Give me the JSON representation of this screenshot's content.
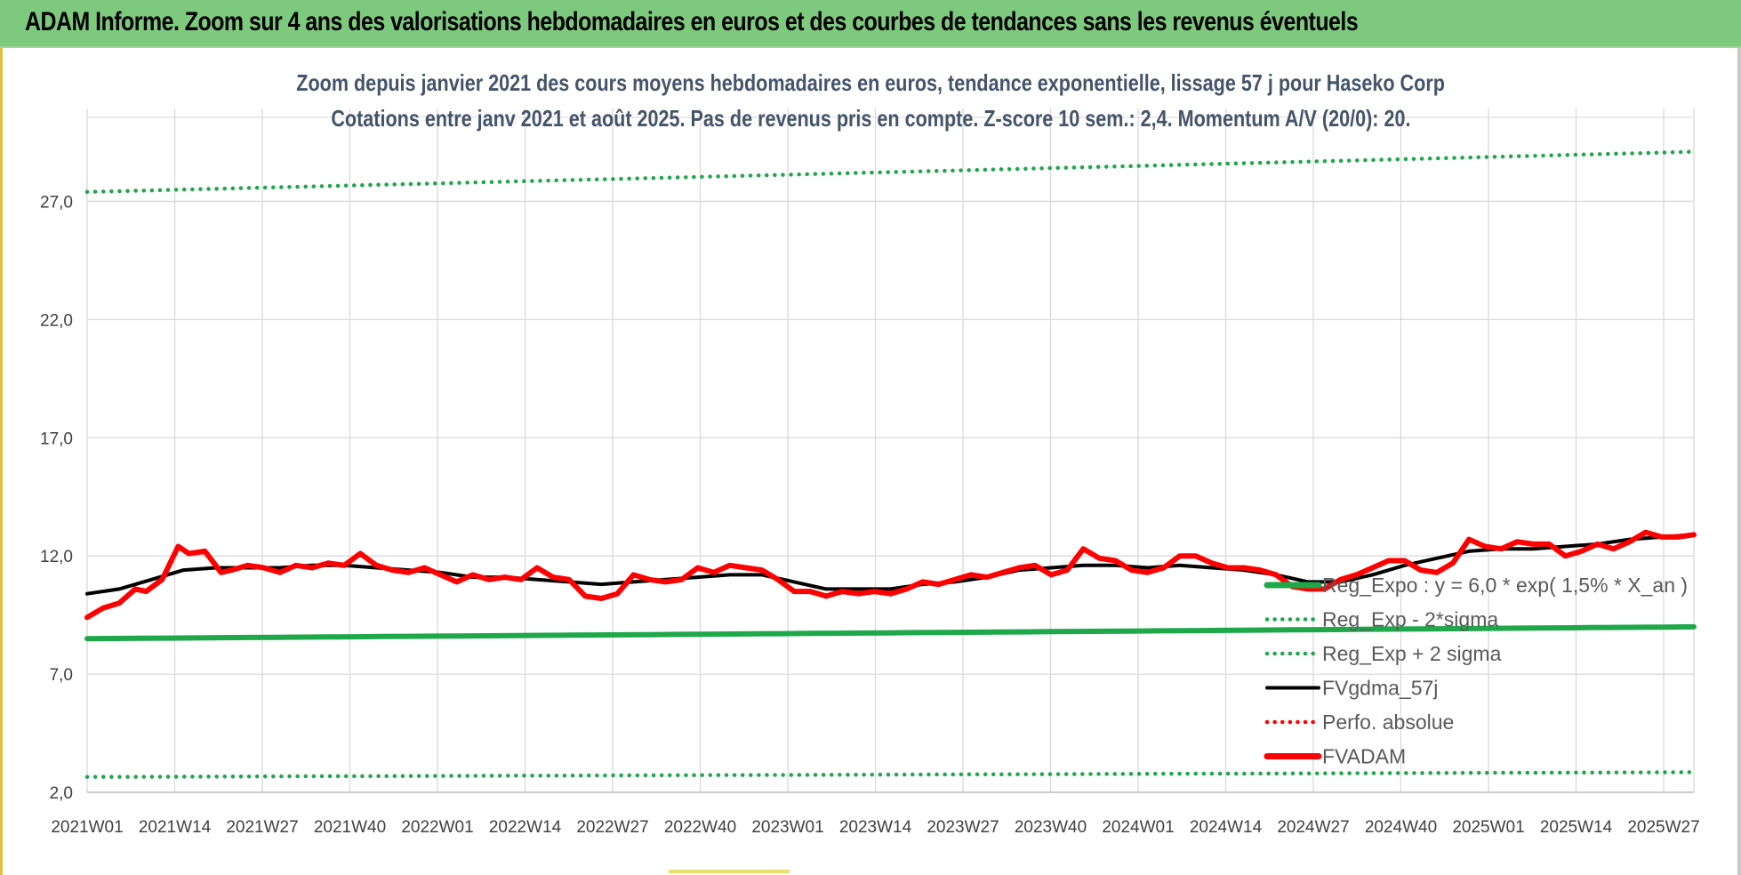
{
  "banner": {
    "title": "ADAM Informe. Zoom sur 4 ans des valorisations hebdomadaires en euros et des courbes de tendances sans les revenus éventuels"
  },
  "chart": {
    "title_line1": "Zoom depuis janvier 2021 des cours moyens hebdomadaires en euros, tendance exponentielle, lissage 57 j pour Haseko Corp",
    "title_line2": "Cotations entre janv 2021 et août 2025.  Pas de revenus pris en compte. Z-score 10 sem.: 2,4. Momentum A/V (20/0): 20."
  },
  "colors": {
    "green": "#1ea84a",
    "black": "#000000",
    "red": "#ff0000",
    "grid": "#d9d9d9",
    "banner": "#7dc97d"
  },
  "chart_data": {
    "type": "line",
    "ylim": [
      2,
      29.5
    ],
    "y_ticks": [
      "2,0",
      "7,0",
      "12,0",
      "17,0",
      "22,0",
      "27,0"
    ],
    "y_tick_values": [
      2,
      7,
      12,
      17,
      22,
      27
    ],
    "x_tick_labels": [
      "2021W01",
      "2021W14",
      "2021W27",
      "2021W40",
      "2022W01",
      "2022W14",
      "2022W27",
      "2022W40",
      "2023W01",
      "2023W14",
      "2023W27",
      "2023W40",
      "2024W01",
      "2024W14",
      "2024W27",
      "2024W40",
      "2025W01",
      "2025W14",
      "2025W27"
    ],
    "weeks_between_ticks": 13,
    "total_weeks": 239,
    "legend": [
      {
        "label": "Reg_Expo : y = 6,0 * exp( 1,5% *  X_an )",
        "style": "solid-thick",
        "color": "#1ea84a"
      },
      {
        "label": "Reg_Exp - 2*sigma",
        "style": "dotted",
        "color": "#1ea84a"
      },
      {
        "label": "Reg_Exp + 2 sigma",
        "style": "dotted",
        "color": "#1ea84a"
      },
      {
        "label": "FVgdma_57j",
        "style": "solid",
        "color": "#000000"
      },
      {
        "label": "Perfo. absolue",
        "style": "dotted",
        "color": "#ff0000"
      },
      {
        "label": "FVADAM",
        "style": "solid-thick",
        "color": "#ff0000"
      }
    ],
    "series": [
      {
        "name": "FVADAM",
        "points": [
          [
            0,
            9.4
          ],
          [
            3,
            9.8
          ],
          [
            6,
            10.0
          ],
          [
            9,
            10.6
          ],
          [
            11,
            10.5
          ],
          [
            14,
            11.0
          ],
          [
            17,
            12.4
          ],
          [
            19,
            12.1
          ],
          [
            22,
            12.2
          ],
          [
            25,
            11.3
          ],
          [
            27,
            11.4
          ],
          [
            30,
            11.6
          ],
          [
            33,
            11.5
          ],
          [
            36,
            11.3
          ],
          [
            39,
            11.6
          ],
          [
            42,
            11.5
          ],
          [
            45,
            11.7
          ],
          [
            48,
            11.6
          ],
          [
            51,
            12.1
          ],
          [
            54,
            11.6
          ],
          [
            57,
            11.4
          ],
          [
            60,
            11.3
          ],
          [
            63,
            11.5
          ],
          [
            66,
            11.2
          ],
          [
            69,
            10.9
          ],
          [
            72,
            11.2
          ],
          [
            75,
            11.0
          ],
          [
            78,
            11.1
          ],
          [
            81,
            11.0
          ],
          [
            84,
            11.5
          ],
          [
            87,
            11.1
          ],
          [
            90,
            11.0
          ],
          [
            93,
            10.3
          ],
          [
            96,
            10.2
          ],
          [
            99,
            10.4
          ],
          [
            102,
            11.2
          ],
          [
            105,
            11.0
          ],
          [
            108,
            10.9
          ],
          [
            111,
            11.0
          ],
          [
            114,
            11.5
          ],
          [
            117,
            11.3
          ],
          [
            120,
            11.6
          ],
          [
            123,
            11.5
          ],
          [
            126,
            11.4
          ],
          [
            129,
            11.0
          ],
          [
            132,
            10.5
          ],
          [
            135,
            10.5
          ],
          [
            138,
            10.3
          ],
          [
            141,
            10.5
          ],
          [
            144,
            10.4
          ],
          [
            147,
            10.5
          ],
          [
            150,
            10.4
          ],
          [
            153,
            10.6
          ],
          [
            156,
            10.9
          ],
          [
            159,
            10.8
          ],
          [
            162,
            11.0
          ],
          [
            165,
            11.2
          ],
          [
            168,
            11.1
          ],
          [
            171,
            11.3
          ],
          [
            174,
            11.5
          ],
          [
            177,
            11.6
          ],
          [
            180,
            11.2
          ],
          [
            183,
            11.4
          ],
          [
            186,
            12.3
          ],
          [
            189,
            11.9
          ],
          [
            192,
            11.8
          ],
          [
            195,
            11.4
          ],
          [
            198,
            11.3
          ],
          [
            201,
            11.5
          ],
          [
            204,
            12.0
          ],
          [
            207,
            12.0
          ],
          [
            210,
            11.7
          ],
          [
            213,
            11.5
          ],
          [
            216,
            11.5
          ],
          [
            219,
            11.4
          ],
          [
            222,
            11.2
          ],
          [
            225,
            10.7
          ],
          [
            228,
            10.6
          ],
          [
            231,
            10.6
          ],
          [
            234,
            11.0
          ],
          [
            237,
            11.2
          ],
          [
            240,
            11.5
          ],
          [
            243,
            11.8
          ],
          [
            246,
            11.8
          ],
          [
            249,
            11.4
          ],
          [
            252,
            11.3
          ],
          [
            255,
            11.7
          ],
          [
            258,
            12.7
          ],
          [
            261,
            12.4
          ],
          [
            264,
            12.3
          ],
          [
            267,
            12.6
          ],
          [
            270,
            12.5
          ],
          [
            273,
            12.5
          ],
          [
            276,
            12.0
          ],
          [
            279,
            12.2
          ],
          [
            282,
            12.5
          ],
          [
            285,
            12.3
          ],
          [
            288,
            12.6
          ],
          [
            291,
            13.0
          ],
          [
            294,
            12.8
          ],
          [
            297,
            12.8
          ],
          [
            300,
            12.9
          ]
        ]
      },
      {
        "name": "FVgdma_57j",
        "points": [
          [
            0,
            10.4
          ],
          [
            6,
            10.6
          ],
          [
            12,
            11.0
          ],
          [
            18,
            11.4
          ],
          [
            24,
            11.5
          ],
          [
            30,
            11.5
          ],
          [
            36,
            11.5
          ],
          [
            42,
            11.6
          ],
          [
            48,
            11.6
          ],
          [
            54,
            11.5
          ],
          [
            60,
            11.4
          ],
          [
            66,
            11.3
          ],
          [
            72,
            11.1
          ],
          [
            78,
            11.1
          ],
          [
            84,
            11.0
          ],
          [
            90,
            10.9
          ],
          [
            96,
            10.8
          ],
          [
            102,
            10.9
          ],
          [
            108,
            11.0
          ],
          [
            114,
            11.1
          ],
          [
            120,
            11.2
          ],
          [
            126,
            11.2
          ],
          [
            132,
            10.9
          ],
          [
            138,
            10.6
          ],
          [
            144,
            10.6
          ],
          [
            150,
            10.6
          ],
          [
            156,
            10.8
          ],
          [
            162,
            10.9
          ],
          [
            168,
            11.1
          ],
          [
            174,
            11.4
          ],
          [
            180,
            11.5
          ],
          [
            186,
            11.6
          ],
          [
            192,
            11.6
          ],
          [
            198,
            11.5
          ],
          [
            204,
            11.6
          ],
          [
            210,
            11.5
          ],
          [
            216,
            11.4
          ],
          [
            222,
            11.2
          ],
          [
            228,
            10.9
          ],
          [
            234,
            10.9
          ],
          [
            240,
            11.2
          ],
          [
            246,
            11.6
          ],
          [
            252,
            11.9
          ],
          [
            258,
            12.2
          ],
          [
            264,
            12.3
          ],
          [
            270,
            12.3
          ],
          [
            276,
            12.4
          ],
          [
            282,
            12.5
          ],
          [
            288,
            12.7
          ],
          [
            294,
            12.8
          ],
          [
            300,
            12.9
          ]
        ]
      },
      {
        "name": "Reg_Expo : y = 6,0 * exp( 1,5% *  X_an )",
        "points": [
          [
            0,
            8.5
          ],
          [
            300,
            9.0
          ]
        ]
      },
      {
        "name": "Reg_Exp - 2*sigma",
        "points": [
          [
            0,
            2.65
          ],
          [
            300,
            2.85
          ]
        ]
      },
      {
        "name": "Reg_Exp + 2 sigma",
        "points": [
          [
            0,
            27.4
          ],
          [
            300,
            29.1
          ]
        ]
      }
    ],
    "x_max_index": 300
  }
}
